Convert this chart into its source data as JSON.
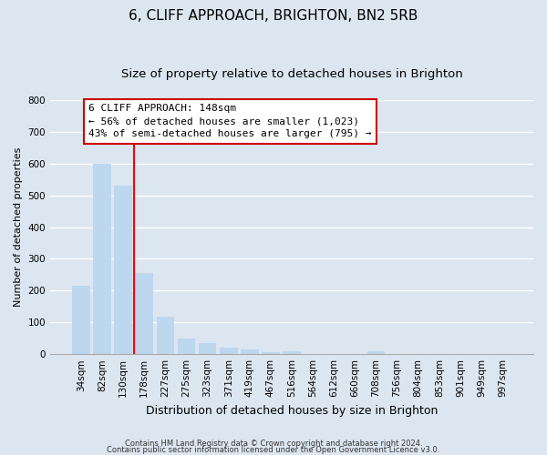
{
  "title": "6, CLIFF APPROACH, BRIGHTON, BN2 5RB",
  "subtitle": "Size of property relative to detached houses in Brighton",
  "xlabel": "Distribution of detached houses by size in Brighton",
  "ylabel": "Number of detached properties",
  "bar_labels": [
    "34sqm",
    "82sqm",
    "130sqm",
    "178sqm",
    "227sqm",
    "275sqm",
    "323sqm",
    "371sqm",
    "419sqm",
    "467sqm",
    "516sqm",
    "564sqm",
    "612sqm",
    "660sqm",
    "708sqm",
    "756sqm",
    "804sqm",
    "853sqm",
    "901sqm",
    "949sqm",
    "997sqm"
  ],
  "bar_heights": [
    215,
    600,
    530,
    255,
    118,
    50,
    35,
    20,
    15,
    5,
    8,
    0,
    0,
    0,
    8,
    0,
    0,
    0,
    0,
    0,
    0
  ],
  "bar_color": "#bdd7ee",
  "highlight_index": -1,
  "vline_x": 2.5,
  "vline_color": "#ff0000",
  "ylim": [
    0,
    800
  ],
  "yticks": [
    0,
    100,
    200,
    300,
    400,
    500,
    600,
    700,
    800
  ],
  "annotation_box_text": "6 CLIFF APPROACH: 148sqm\n← 56% of detached houses are smaller (1,023)\n43% of semi-detached houses are larger (795) →",
  "footer_line1": "Contains HM Land Registry data © Crown copyright and database right 2024.",
  "footer_line2": "Contains public sector information licensed under the Open Government Licence v3.0.",
  "background_color": "#dce6f1",
  "plot_bg_color": "#dce6f1",
  "grid_color": "#ffffff",
  "title_fontsize": 11,
  "subtitle_fontsize": 9.5,
  "tick_fontsize": 7.5,
  "ylabel_fontsize": 8,
  "xlabel_fontsize": 9
}
